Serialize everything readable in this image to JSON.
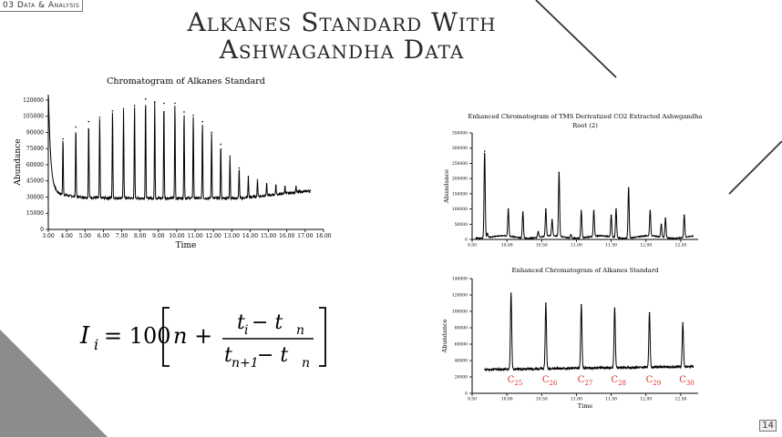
{
  "header": {
    "section_tag": "03 Data & Analysis",
    "title_line1": "Alkanes Standard With",
    "title_line2": "Ashwagandha Data",
    "slide_number": "14"
  },
  "formula": {
    "lhs": "I",
    "lhs_sub": "i",
    "equals": "= 100",
    "n": "n +",
    "num_t": "t",
    "num_t_sub": "i",
    "num_minus": " − t",
    "num_tn_sub": "n",
    "den_t": "t",
    "den_t_sub": "n+1",
    "den_minus": " − t",
    "den_tn_sub": "n"
  },
  "chart_data": [
    {
      "type": "line",
      "title": "Chromatogram  of Alkanes Standard",
      "xlabel": "Time",
      "ylabel": "Abundance",
      "xlim": [
        3.0,
        18.0
      ],
      "ylim": [
        0,
        125000
      ],
      "x_ticks": [
        "3.00",
        "4.00",
        "5.00",
        "6.00",
        "7.00",
        "8.00",
        "9.00",
        "10.00",
        "11.00",
        "12.00",
        "13.00",
        "14.00",
        "15.00",
        "16.00",
        "17.00",
        "18.00"
      ],
      "y_ticks": [
        "0",
        "15000",
        "30000",
        "45000",
        "60000",
        "75000",
        "90000",
        "105000",
        "120000"
      ],
      "peaks": [
        {
          "x": 3.8,
          "y": 84000
        },
        {
          "x": 4.5,
          "y": 95000
        },
        {
          "x": 5.2,
          "y": 100000
        },
        {
          "x": 5.8,
          "y": 104000
        },
        {
          "x": 6.5,
          "y": 110000
        },
        {
          "x": 7.1,
          "y": 112000
        },
        {
          "x": 7.7,
          "y": 115000
        },
        {
          "x": 8.3,
          "y": 121000
        },
        {
          "x": 8.8,
          "y": 118000
        },
        {
          "x": 9.3,
          "y": 117000
        },
        {
          "x": 9.9,
          "y": 117000
        },
        {
          "x": 10.4,
          "y": 109000
        },
        {
          "x": 10.9,
          "y": 106000
        },
        {
          "x": 11.4,
          "y": 100000
        },
        {
          "x": 11.9,
          "y": 90000
        },
        {
          "x": 12.4,
          "y": 79000
        },
        {
          "x": 12.9,
          "y": 68000
        },
        {
          "x": 13.4,
          "y": 57000
        },
        {
          "x": 13.9,
          "y": 49000
        },
        {
          "x": 14.4,
          "y": 46000
        },
        {
          "x": 14.9,
          "y": 42000
        },
        {
          "x": 15.4,
          "y": 41000
        },
        {
          "x": 15.9,
          "y": 40000
        },
        {
          "x": 16.5,
          "y": 40000
        }
      ]
    },
    {
      "type": "line",
      "title": "Enhanced Chromatogram of TMS Derivatized CO2 Extracted Ashwgandha Root (2)",
      "xlabel": "",
      "ylabel": "Abundance",
      "xlim": [
        9.5,
        12.75
      ],
      "ylim": [
        0,
        350000
      ],
      "x_ticks": [
        "9.50",
        "10.00",
        "10.50",
        "11.00",
        "11.50",
        "12.00",
        "12.50"
      ],
      "y_ticks": [
        "0",
        "50000",
        "100000",
        "150000",
        "200000",
        "250000",
        "300000",
        "350000"
      ],
      "peaks": [
        {
          "x": 9.68,
          "y": 290000
        },
        {
          "x": 9.72,
          "y": 20000
        },
        {
          "x": 10.02,
          "y": 100000
        },
        {
          "x": 10.23,
          "y": 90000
        },
        {
          "x": 10.45,
          "y": 25000
        },
        {
          "x": 10.56,
          "y": 100000
        },
        {
          "x": 10.65,
          "y": 65000
        },
        {
          "x": 10.75,
          "y": 220000
        },
        {
          "x": 10.92,
          "y": 15000
        },
        {
          "x": 11.07,
          "y": 95000
        },
        {
          "x": 11.25,
          "y": 95000
        },
        {
          "x": 11.5,
          "y": 80000
        },
        {
          "x": 11.57,
          "y": 100000
        },
        {
          "x": 11.75,
          "y": 170000
        },
        {
          "x": 12.06,
          "y": 95000
        },
        {
          "x": 12.22,
          "y": 50000
        },
        {
          "x": 12.28,
          "y": 70000
        },
        {
          "x": 12.55,
          "y": 80000
        }
      ]
    },
    {
      "type": "line",
      "title": "Enhanced Chromatogram of Alkanes Standard",
      "xlabel": "Time",
      "ylabel": "Abundance",
      "xlim": [
        9.5,
        12.75
      ],
      "ylim": [
        0,
        140000
      ],
      "x_ticks": [
        "9.50",
        "10.00",
        "10.50",
        "11.00",
        "11.50",
        "12.00",
        "12.50"
      ],
      "y_ticks": [
        "0",
        "20000",
        "40000",
        "60000",
        "80000",
        "100000",
        "120000",
        "140000"
      ],
      "peaks": [
        {
          "x": 10.06,
          "y": 122000,
          "label": "C",
          "sub": "25"
        },
        {
          "x": 10.56,
          "y": 110000,
          "label": "C",
          "sub": "26"
        },
        {
          "x": 11.07,
          "y": 108000,
          "label": "C",
          "sub": "27"
        },
        {
          "x": 11.55,
          "y": 104000,
          "label": "C",
          "sub": "28"
        },
        {
          "x": 12.05,
          "y": 98000,
          "label": "C",
          "sub": "29"
        },
        {
          "x": 12.53,
          "y": 86000,
          "label": "C",
          "sub": "30"
        }
      ]
    }
  ]
}
